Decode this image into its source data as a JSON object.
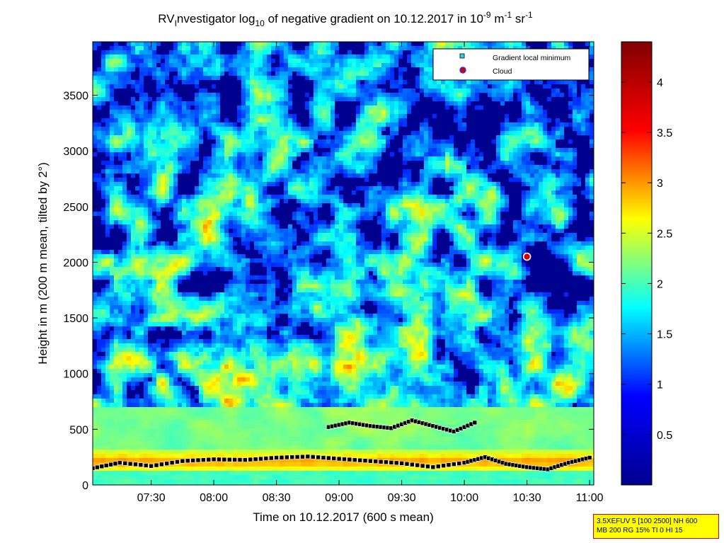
{
  "chart_data": {
    "type": "heatmap",
    "title": "RVInvestigator log10 of negative gradient on 10.12.2017 in 10-9 m-1 sr-1",
    "title_parts": {
      "main": "RV",
      "sub_main": "I",
      "after": "nvestigator log",
      "sub_log": "10",
      "rest": " of negative gradient on 10.12.2017 in 10",
      "sup1": "-9",
      "unit_m": " m",
      "sup2": "-1",
      "unit_sr": " sr",
      "sup3": "-1"
    },
    "xlabel": "Time on 10.12.2017 (600 s mean)",
    "ylabel": "Height in m (200 m mean, tilted by 2°)",
    "x_ticks": [
      "07:30",
      "08:00",
      "08:30",
      "09:00",
      "09:30",
      "10:00",
      "10:30",
      "11:00"
    ],
    "y_ticks": [
      "0",
      "500",
      "1000",
      "1500",
      "2000",
      "2500",
      "3000",
      "3500"
    ],
    "xlim": [
      "07:02",
      "11:02"
    ],
    "ylim": [
      0,
      3980
    ],
    "colorbar": {
      "ticks": [
        "0.5",
        "1",
        "1.5",
        "2",
        "2.5",
        "3",
        "3.5",
        "4"
      ],
      "range": [
        0,
        4.4
      ],
      "colormap": [
        "#00008f",
        "#0000ff",
        "#00ffff",
        "#ffff00",
        "#ff0000",
        "#800000"
      ]
    },
    "legend": {
      "position": "top-right",
      "entries": [
        {
          "label": "Gradient local minimum",
          "marker": "square",
          "color": "#30d0e0"
        },
        {
          "label": "Cloud",
          "marker": "circle",
          "color": "#d00000",
          "edge": "#2020ff"
        }
      ]
    },
    "series": [
      {
        "name": "Gradient local minimum (lowest layer)",
        "x": [
          "07:02",
          "07:15",
          "07:30",
          "07:45",
          "08:00",
          "08:15",
          "08:30",
          "08:45",
          "09:00",
          "09:15",
          "09:30",
          "09:45",
          "10:00",
          "10:10",
          "10:20",
          "10:30",
          "10:40",
          "10:50",
          "11:00"
        ],
        "y": [
          150,
          200,
          170,
          215,
          230,
          225,
          245,
          255,
          235,
          215,
          195,
          160,
          200,
          250,
          190,
          160,
          140,
          200,
          245
        ]
      },
      {
        "name": "Gradient local minimum (boundary layer top)",
        "x": [
          "08:55",
          "09:05",
          "09:15",
          "09:25",
          "09:35",
          "09:45",
          "09:55",
          "10:05"
        ],
        "y": [
          520,
          560,
          530,
          510,
          580,
          530,
          480,
          560
        ]
      },
      {
        "name": "Cloud",
        "x": [
          "10:30"
        ],
        "y": [
          2050
        ]
      }
    ]
  },
  "infobox": {
    "line1": "3.5XEFUV 5 [100 2500] NH 600",
    "line2": "MB 200 RG 15% TI 0 HI 15"
  }
}
